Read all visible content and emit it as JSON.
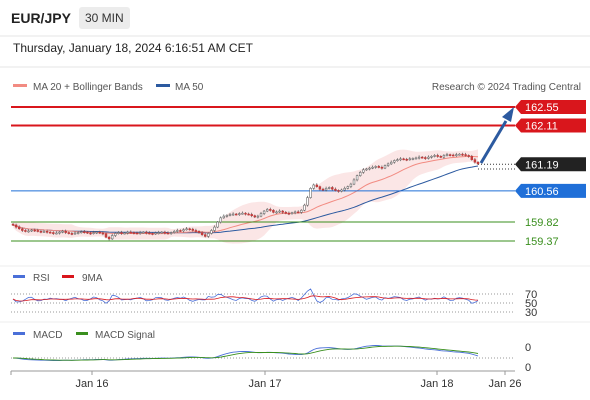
{
  "header": {
    "symbol": "EUR/JPY",
    "timeframe": "30 MIN",
    "datetime": "Thursday, January 18, 2024 6:16:51 AM CET"
  },
  "chart_data": [
    {
      "type": "candlestick",
      "legend": [
        {
          "label": "MA 20 + Bollinger Bands",
          "color": "#f28b82"
        },
        {
          "label": "MA 50",
          "color": "#2c5aa0"
        }
      ],
      "attribution": "Research © 2024 Trading Central",
      "price_levels": [
        {
          "value": 162.55,
          "label": "162.55",
          "color": "#d9161c"
        },
        {
          "value": 162.11,
          "label": "162.11",
          "color": "#d9161c"
        },
        {
          "value": 161.19,
          "label": "161.19",
          "color": "#222222"
        },
        {
          "value": 160.56,
          "label": "160.56",
          "color": "#1f6fd8"
        },
        {
          "value": 159.82,
          "label": "159.82",
          "color": "#3a8f1e"
        },
        {
          "value": 159.37,
          "label": "159.37",
          "color": "#3a8f1e"
        }
      ],
      "x_ticks": [
        "Jan 16",
        "Jan 17",
        "Jan 18",
        "Jan 26"
      ],
      "close_series": [
        159.75,
        159.7,
        159.66,
        159.62,
        159.6,
        159.61,
        159.63,
        159.62,
        159.6,
        159.59,
        159.6,
        159.58,
        159.57,
        159.55,
        159.56,
        159.58,
        159.6,
        159.57,
        159.55,
        159.54,
        159.56,
        159.57,
        159.59,
        159.58,
        159.56,
        159.55,
        159.57,
        159.58,
        159.56,
        159.54,
        159.46,
        159.42,
        159.5,
        159.55,
        159.57,
        159.55,
        159.56,
        159.58,
        159.57,
        159.56,
        159.55,
        159.57,
        159.58,
        159.56,
        159.55,
        159.54,
        159.56,
        159.57,
        159.58,
        159.56,
        159.55,
        159.57,
        159.6,
        159.62,
        159.61,
        159.64,
        159.66,
        159.65,
        159.62,
        159.6,
        159.57,
        159.52,
        159.48,
        159.55,
        159.62,
        159.7,
        159.82,
        159.92,
        159.96,
        159.98,
        160.0,
        160.01,
        160.0,
        160.02,
        160.03,
        160.01,
        160.0,
        159.97,
        159.94,
        159.96,
        160.02,
        160.08,
        160.12,
        160.1,
        160.05,
        160.06,
        160.08,
        160.05,
        160.03,
        160.02,
        160.04,
        160.06,
        160.05,
        160.1,
        160.22,
        160.4,
        160.62,
        160.7,
        160.66,
        160.6,
        160.58,
        160.62,
        160.64,
        160.6,
        160.57,
        160.55,
        160.58,
        160.62,
        160.66,
        160.72,
        160.82,
        160.92,
        161.0,
        161.06,
        161.08,
        161.1,
        161.12,
        161.14,
        161.12,
        161.1,
        161.16,
        161.2,
        161.24,
        161.28,
        161.3,
        161.32,
        161.31,
        161.3,
        161.32,
        161.33,
        161.34,
        161.36,
        161.35,
        161.33,
        161.36,
        161.38,
        161.4,
        161.38,
        161.36,
        161.4,
        161.42,
        161.41,
        161.4,
        161.42,
        161.43,
        161.42,
        161.4,
        161.38,
        161.3,
        161.24,
        161.2
      ]
    },
    {
      "type": "line",
      "legend": [
        {
          "label": "RSI",
          "color": "#4a6fd8"
        },
        {
          "label": "9MA",
          "color": "#d9161c"
        }
      ],
      "y_ticks": [
        "70",
        "50",
        "30"
      ]
    },
    {
      "type": "line",
      "legend": [
        {
          "label": "MACD",
          "color": "#4a6fd8"
        },
        {
          "label": "MACD Signal",
          "color": "#3a8f1e"
        }
      ],
      "y_ticks": [
        "0",
        "0"
      ]
    }
  ]
}
